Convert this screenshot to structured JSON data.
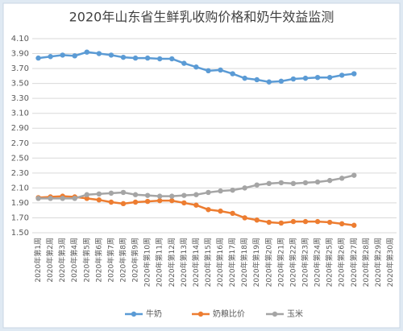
{
  "chart_data": {
    "type": "line",
    "title": "2020年山东省生鲜乳收购价格和奶牛效益监测",
    "categories": [
      "2020年第1周",
      "2020年第2周",
      "2020年第3周",
      "2020年第4周",
      "2020年第5周",
      "2020年第6周",
      "2020年第7周",
      "2020年第8周",
      "2020年第9周",
      "2020年第10周",
      "2020年第11周",
      "2020年第12周",
      "2020年第13周",
      "2020年第14周",
      "2020年第15周",
      "2020年第16周",
      "2020年第17周",
      "2020年第18周",
      "2020年第19周",
      "2020年第20周",
      "2020年第21周",
      "2020年第22周",
      "2020年第23周",
      "2020年第24周",
      "2020年第25周",
      "2020年第26周",
      "2020年第27周",
      "2020年第28周",
      "2020年第29周",
      "2020年第30周"
    ],
    "series": [
      {
        "name": "牛奶",
        "color": "#5b9bd5",
        "values": [
          3.84,
          3.86,
          3.88,
          3.87,
          3.92,
          3.9,
          3.88,
          3.85,
          3.84,
          3.84,
          3.83,
          3.83,
          3.77,
          3.72,
          3.67,
          3.68,
          3.63,
          3.57,
          3.55,
          3.52,
          3.53,
          3.56,
          3.57,
          3.58,
          3.58,
          3.61,
          3.63,
          null,
          null,
          null
        ]
      },
      {
        "name": "奶粮比价",
        "color": "#ed7d31",
        "values": [
          1.97,
          1.98,
          1.99,
          1.98,
          1.96,
          1.94,
          1.91,
          1.89,
          1.91,
          1.92,
          1.93,
          1.93,
          1.9,
          1.87,
          1.81,
          1.79,
          1.76,
          1.7,
          1.67,
          1.64,
          1.63,
          1.65,
          1.65,
          1.65,
          1.64,
          1.62,
          1.6,
          null,
          null,
          null
        ]
      },
      {
        "name": "玉米",
        "color": "#a5a5a5",
        "values": [
          1.96,
          1.96,
          1.96,
          1.96,
          2.01,
          2.02,
          2.03,
          2.04,
          2.01,
          2.0,
          1.99,
          1.99,
          2.0,
          2.01,
          2.04,
          2.06,
          2.07,
          2.1,
          2.14,
          2.16,
          2.17,
          2.16,
          2.17,
          2.18,
          2.2,
          2.23,
          2.27,
          null,
          null,
          null
        ]
      }
    ],
    "ylim": [
      1.5,
      4.1
    ],
    "yticks": [
      {
        "value": 1.5,
        "label": "1.50"
      },
      {
        "value": 1.7,
        "label": "1.70"
      },
      {
        "value": 1.9,
        "label": "1.90"
      },
      {
        "value": 2.1,
        "label": "2.10"
      },
      {
        "value": 2.3,
        "label": "2.30"
      },
      {
        "value": 2.5,
        "label": "2.50"
      },
      {
        "value": 2.7,
        "label": "2.70"
      },
      {
        "value": 2.9,
        "label": "2.90"
      },
      {
        "value": 3.1,
        "label": "3.10"
      },
      {
        "value": 3.3,
        "label": "3.30"
      },
      {
        "value": 3.5,
        "label": "3.50"
      },
      {
        "value": 3.7,
        "label": "3.70"
      },
      {
        "value": 3.9,
        "label": "3.90"
      },
      {
        "value": 4.1,
        "label": "4.10"
      }
    ],
    "grid": true
  }
}
